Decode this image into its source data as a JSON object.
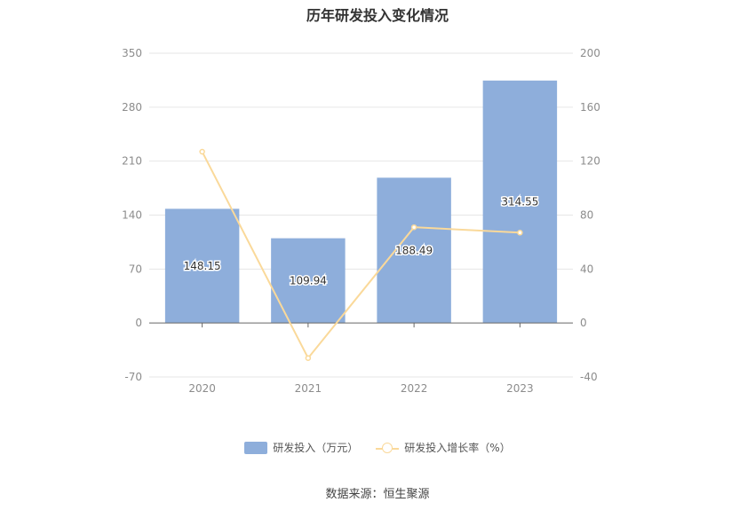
{
  "chart_data": {
    "title": "历年研发投入变化情况",
    "type": "bar+line",
    "categories": [
      "2020",
      "2021",
      "2022",
      "2023"
    ],
    "series": [
      {
        "name": "研发投入（万元）",
        "type": "bar",
        "axis": "left",
        "values": [
          148.15,
          109.94,
          188.49,
          314.55
        ],
        "labels": [
          "148.15",
          "109.94",
          "188.49",
          "314.55"
        ],
        "color": "#8eaedb"
      },
      {
        "name": "研发投入增长率（%）",
        "type": "line",
        "axis": "right",
        "values": [
          127,
          -26,
          71,
          67
        ],
        "color": "#fad99a"
      }
    ],
    "y_left": {
      "min": -70,
      "max": 350,
      "ticks": [
        "-70",
        "0",
        "70",
        "140",
        "210",
        "280",
        "350"
      ]
    },
    "y_right": {
      "min": -40,
      "max": 200,
      "ticks": [
        "-40",
        "0",
        "40",
        "80",
        "120",
        "160",
        "200"
      ]
    },
    "grid": true,
    "legend_position": "bottom-center"
  },
  "source": "数据来源：恒生聚源"
}
